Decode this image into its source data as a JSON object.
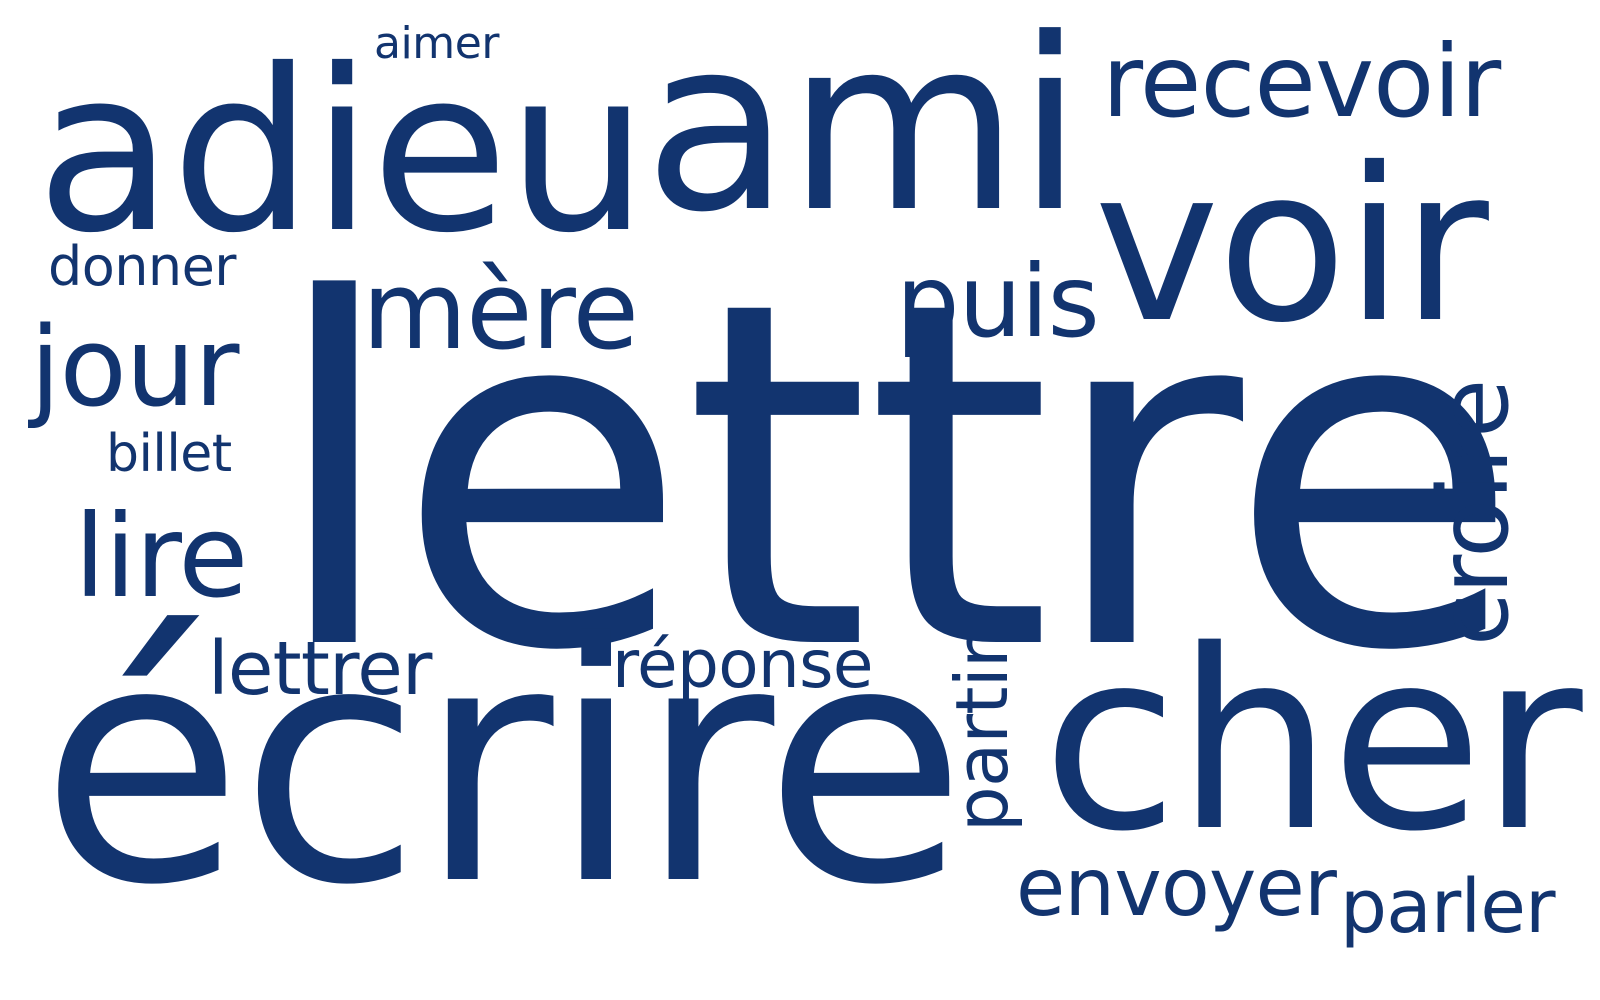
{
  "word_cloud": {
    "text_color": "#12346f",
    "background_color": "#ffffff",
    "words": {
      "lettre": "lettre",
      "ecrire": "écrire",
      "ami": "ami",
      "adieu": "adieu",
      "cher": "cher",
      "voir": "voir",
      "recevoir": "recevoir",
      "mere": "mère",
      "jour": "jour",
      "lire": "lire",
      "puis": "puis",
      "croire": "croire",
      "envoyer": "envoyer",
      "lettrer": "lettrer",
      "parler": "parler",
      "partir": "partir",
      "reponse": "réponse",
      "donner": "donner",
      "billet": "billet",
      "aimer": "aimer"
    }
  }
}
